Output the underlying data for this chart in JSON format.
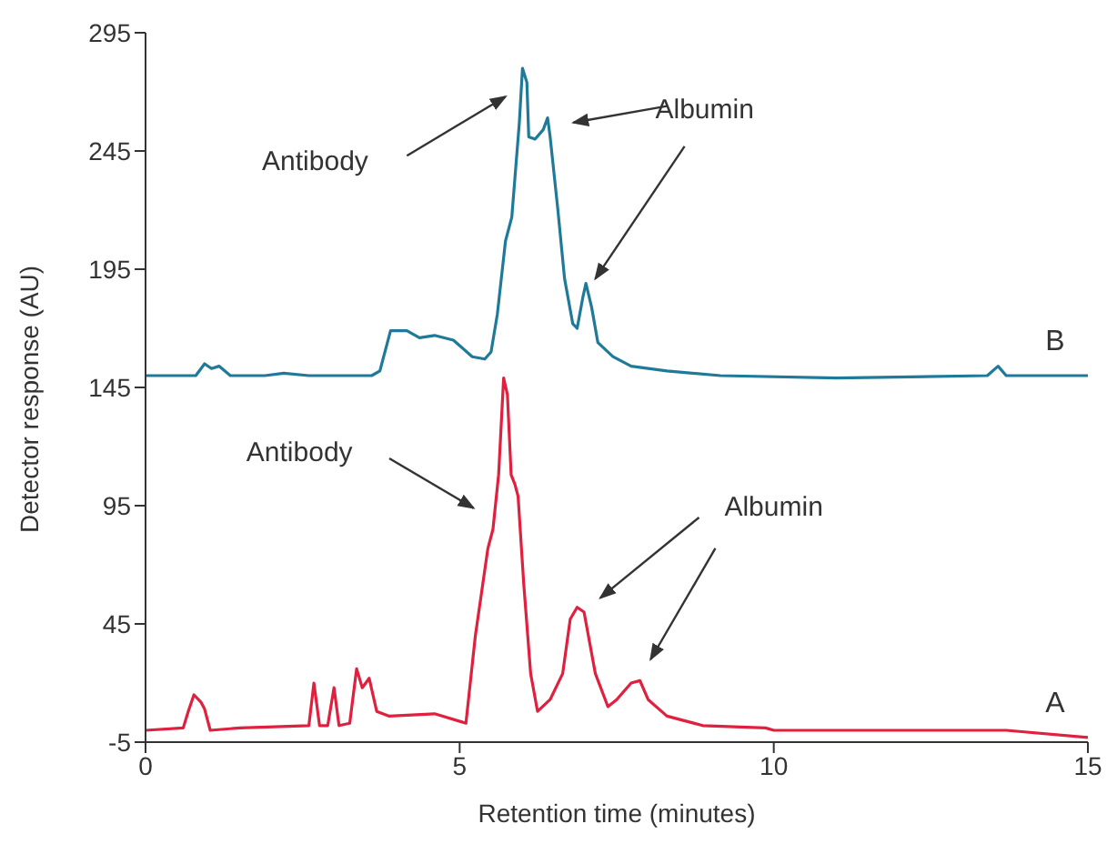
{
  "chart_data": {
    "type": "line",
    "xlabel": "Retention time (minutes)",
    "ylabel": "Detector response (AU)",
    "xlim": [
      0,
      15
    ],
    "xticks": [
      0,
      5,
      10,
      15
    ],
    "ylim": [
      -5,
      295
    ],
    "yticks": [
      -5,
      45,
      95,
      145,
      195,
      245,
      295
    ],
    "grid": false,
    "legend": false,
    "marker": "none",
    "line_style": "solid",
    "series": [
      {
        "name": "B",
        "color": "#1f7a99",
        "x": [
          0,
          0.8,
          0.94,
          1.05,
          1.17,
          1.35,
          1.9,
          2.2,
          2.6,
          3.6,
          3.73,
          3.9,
          4.16,
          4.36,
          4.6,
          4.9,
          5.2,
          5.4,
          5.5,
          5.6,
          5.73,
          5.83,
          5.95,
          6.0,
          6.07,
          6.1,
          6.2,
          6.33,
          6.4,
          6.44,
          6.56,
          6.67,
          6.8,
          6.87,
          6.96,
          7.01,
          7.1,
          7.2,
          7.44,
          7.73,
          8.3,
          9.15,
          11,
          13.4,
          13.57,
          13.7,
          15
        ],
        "values": [
          150,
          150,
          155,
          153,
          154,
          150,
          150,
          151,
          150,
          150,
          152,
          169,
          169,
          166,
          167,
          165,
          158,
          157,
          160,
          176,
          207,
          217,
          257,
          280,
          274,
          251,
          250,
          254,
          259,
          251,
          221,
          191,
          172,
          170,
          183,
          189,
          179,
          164,
          158,
          154,
          152,
          150,
          149,
          150,
          154,
          150,
          150
        ]
      },
      {
        "name": "A",
        "color": "#e0203f",
        "x": [
          0,
          0.6,
          0.68,
          0.77,
          0.88,
          0.94,
          1.03,
          1.5,
          2.6,
          2.68,
          2.77,
          2.9,
          3.0,
          3.08,
          3.25,
          3.36,
          3.45,
          3.56,
          3.68,
          3.88,
          4.6,
          5.1,
          5.25,
          5.45,
          5.53,
          5.62,
          5.7,
          5.76,
          5.82,
          5.88,
          5.93,
          6.02,
          6.13,
          6.24,
          6.44,
          6.64,
          6.76,
          6.87,
          6.98,
          7.16,
          7.36,
          7.5,
          7.73,
          7.87,
          8.0,
          8.3,
          8.87,
          9.87,
          10.0,
          12,
          13.7,
          15
        ],
        "values": [
          0,
          1,
          8,
          15,
          12,
          9,
          0,
          1,
          2,
          20,
          2,
          2,
          18,
          2,
          3,
          26,
          18,
          22,
          8,
          6,
          7,
          3,
          40,
          77,
          85,
          108,
          149,
          142,
          108,
          104,
          99,
          62,
          24,
          8,
          13,
          24,
          47,
          52,
          50,
          24,
          10,
          13,
          20,
          21,
          13,
          6,
          2,
          1,
          0,
          0,
          0,
          -3
        ]
      }
    ],
    "annotations": [
      "Antibody",
      "Albumin",
      "Antibody",
      "Albumin"
    ]
  }
}
